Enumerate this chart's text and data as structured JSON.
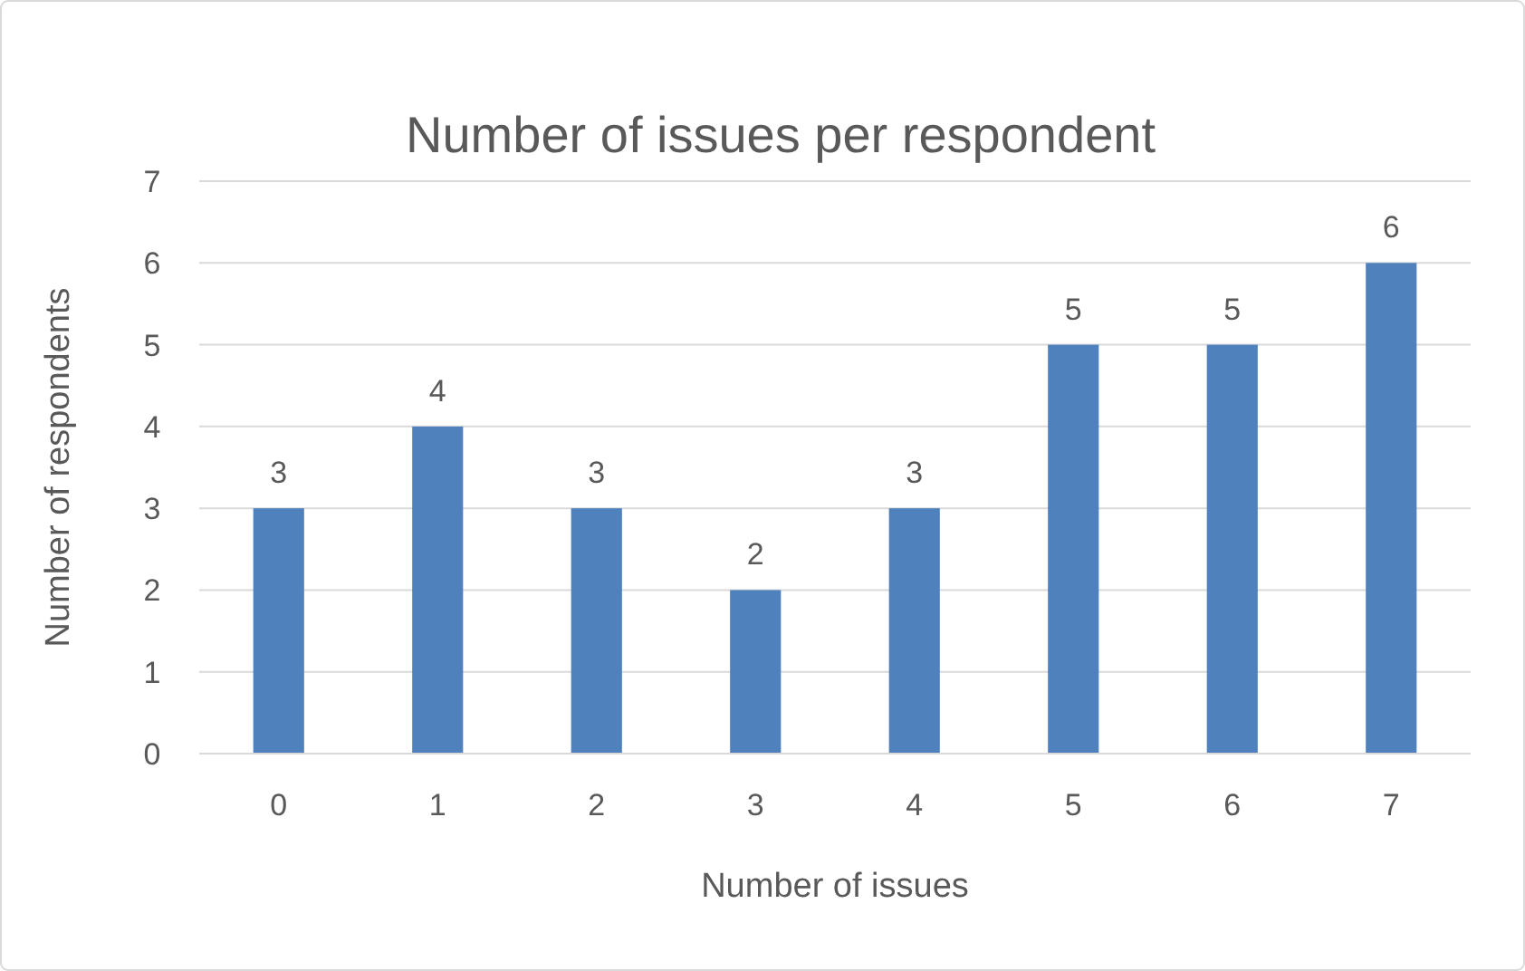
{
  "chart_data": {
    "type": "bar",
    "title": "Number of issues per respondent",
    "xlabel": "Number of issues",
    "ylabel": "Number of respondents",
    "categories": [
      "0",
      "1",
      "2",
      "3",
      "4",
      "5",
      "6",
      "7"
    ],
    "values": [
      3,
      4,
      3,
      2,
      3,
      5,
      5,
      6
    ],
    "color": "#4f81bd",
    "ylim": [
      0,
      7
    ],
    "yticks": [
      0,
      1,
      2,
      3,
      4,
      5,
      6,
      7
    ],
    "grid": "y",
    "data_labels": true
  }
}
